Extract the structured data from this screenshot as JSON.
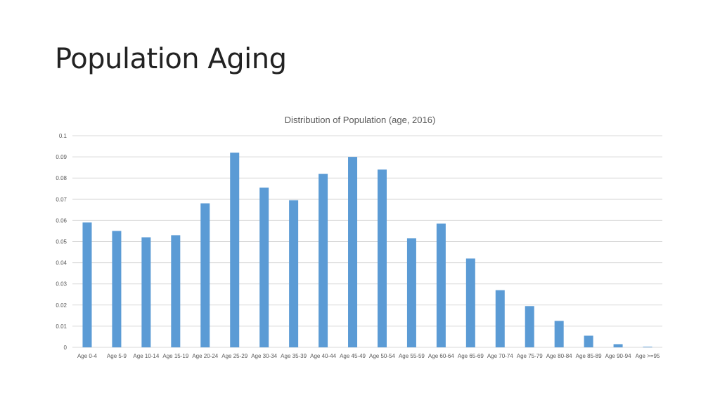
{
  "slide": {
    "title": "Population Aging"
  },
  "colors": {
    "bar": "#5b9bd5",
    "gridline": "#d9d9d9",
    "axis_text": "#595959",
    "title_text": "#222222"
  },
  "chart_data": {
    "type": "bar",
    "title": "Distribution of Population (age, 2016)",
    "xlabel": "",
    "ylabel": "",
    "ylim": [
      0,
      0.1
    ],
    "yticks": [
      "0",
      "0.01",
      "0.02",
      "0.03",
      "0.04",
      "0.05",
      "0.06",
      "0.07",
      "0.08",
      "0.09",
      "0.1"
    ],
    "grid": true,
    "legend": "none",
    "categories": [
      "Age 0-4",
      "Age 5-9",
      "Age 10-14",
      "Age 15-19",
      "Age 20-24",
      "Age 25-29",
      "Age 30-34",
      "Age 35-39",
      "Age 40-44",
      "Age 45-49",
      "Age 50-54",
      "Age 55-59",
      "Age 60-64",
      "Age 65-69",
      "Age 70-74",
      "Age 75-79",
      "Age 80-84",
      "Age 85-89",
      "Age 90-94",
      "Age >=95"
    ],
    "values": [
      0.059,
      0.055,
      0.052,
      0.053,
      0.068,
      0.092,
      0.0755,
      0.0695,
      0.082,
      0.09,
      0.084,
      0.0515,
      0.0585,
      0.042,
      0.027,
      0.0195,
      0.0125,
      0.0055,
      0.0015,
      0.0003
    ]
  }
}
